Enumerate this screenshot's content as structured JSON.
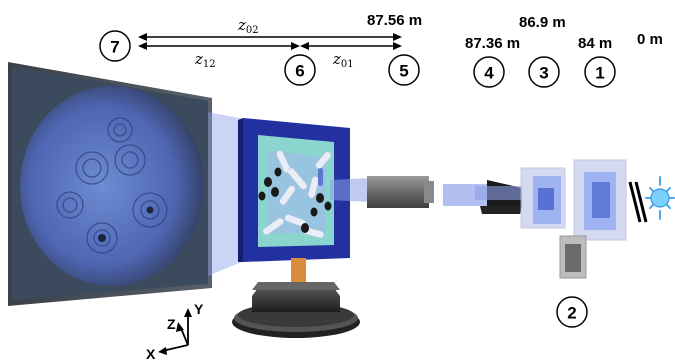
{
  "distances": {
    "d5": "87.56 m",
    "d3": "86.9 m",
    "d4": "87.36 m",
    "d1": "84 m",
    "d0": "0 m"
  },
  "markers": {
    "m7": "7",
    "m6": "6",
    "m5": "5",
    "m4": "4",
    "m3": "3",
    "m1": "1",
    "m2": "2"
  },
  "spans": {
    "z02": {
      "base": "z",
      "sub": "02"
    },
    "z12": {
      "base": "z",
      "sub": "12"
    },
    "z01": {
      "base": "z",
      "sub": "01"
    }
  },
  "axes": {
    "x": "X",
    "y": "Y",
    "z": "Z"
  },
  "colors": {
    "hologram_blue": "#5a78c8",
    "frame_blue": "#2a35a8",
    "sample_teal": "#8fd8d0",
    "beam": "#9aa8ee",
    "post": "#d98c3a",
    "source": "#6ec8ff"
  }
}
